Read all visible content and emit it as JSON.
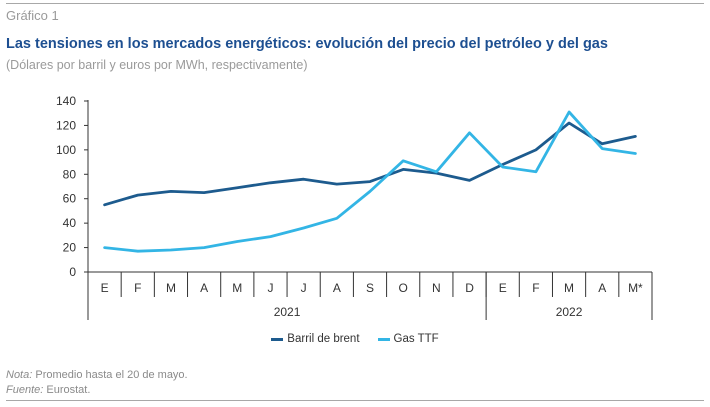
{
  "figure_label": "Gráfico 1",
  "title": "Las tensiones en los mercados energéticos: evolución del precio del petróleo y del gas",
  "subtitle": "(Dólares por barril y euros por MWh, respectivamente)",
  "notes": {
    "nota_label": "Nota:",
    "nota_text": " Promedio hasta el 20 de mayo.",
    "fuente_label": "Fuente:",
    "fuente_text": " Eurostat."
  },
  "colors": {
    "brent": "#1d5b8e",
    "gas": "#33b5e5",
    "axis": "#333333",
    "title": "#1d4f91"
  },
  "chart_data": {
    "type": "line",
    "categories": [
      "E",
      "F",
      "M",
      "A",
      "M",
      "J",
      "J",
      "A",
      "S",
      "O",
      "N",
      "D",
      "E",
      "F",
      "M",
      "A",
      "M*"
    ],
    "years": [
      {
        "label": "2021",
        "start": 0,
        "end": 11
      },
      {
        "label": "2022",
        "start": 12,
        "end": 16
      }
    ],
    "ylim": [
      0,
      140
    ],
    "yticks": [
      0,
      20,
      40,
      60,
      80,
      100,
      120,
      140
    ],
    "grid": false,
    "legend_position": "bottom",
    "series": [
      {
        "name": "Barril de brent",
        "color": "#1d5b8e",
        "values": [
          55,
          63,
          66,
          65,
          69,
          73,
          76,
          72,
          74,
          84,
          81,
          75,
          88,
          100,
          122,
          105,
          111
        ]
      },
      {
        "name": "Gas TTF",
        "color": "#33b5e5",
        "values": [
          20,
          17,
          18,
          20,
          25,
          29,
          36,
          44,
          66,
          91,
          82,
          114,
          86,
          82,
          131,
          101,
          97
        ]
      }
    ]
  }
}
